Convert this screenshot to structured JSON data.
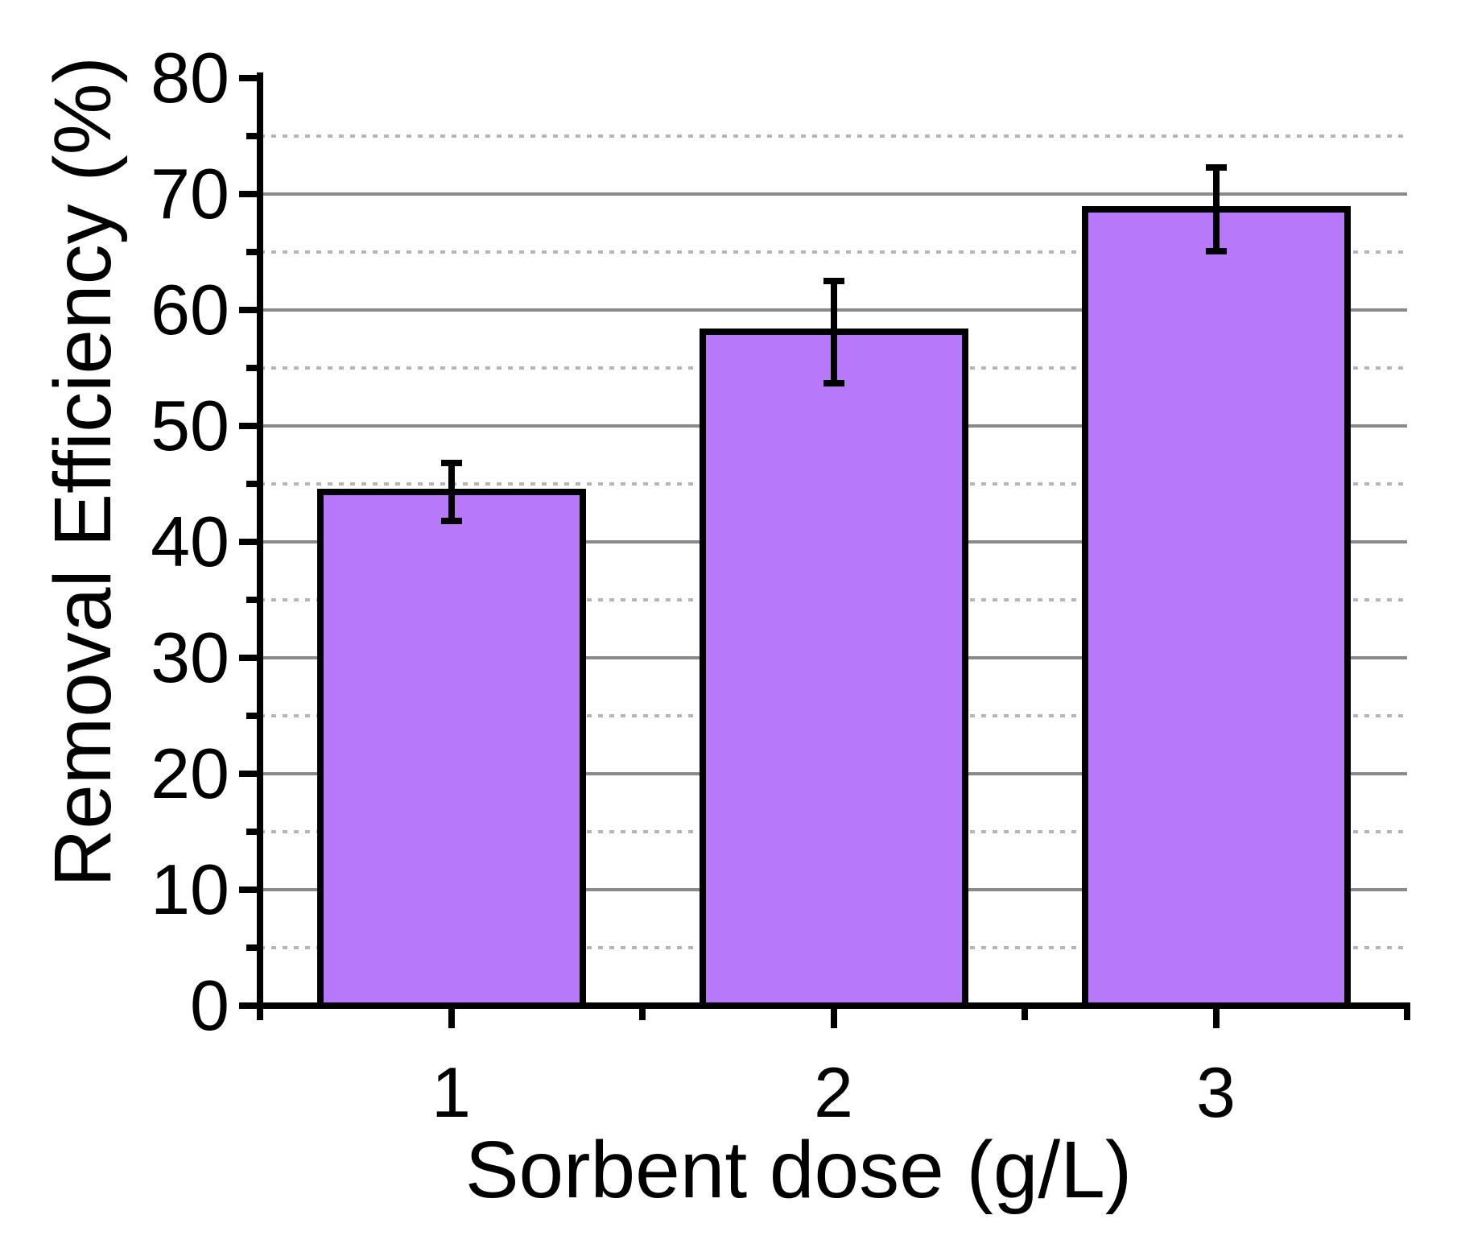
{
  "chart_data": {
    "type": "bar",
    "title": "",
    "xlabel": "Sorbent dose (g/L)",
    "ylabel": "Removal Efficiency (%)",
    "categories": [
      "1",
      "2",
      "3"
    ],
    "values": [
      44.3,
      58.1,
      68.7
    ],
    "error_bars": [
      2.5,
      4.4,
      3.6
    ],
    "ylim": [
      0,
      80
    ],
    "y_major_step": 10,
    "y_minor_step": 5,
    "y_tick_labels": [
      "0",
      "10",
      "20",
      "30",
      "40",
      "50",
      "60",
      "70",
      "80"
    ],
    "grid": {
      "major_style": "solid",
      "minor_style": "dotted",
      "vertical": "off"
    },
    "legend": "none",
    "colors": {
      "bar_fill": "#b778fa",
      "bar_edge": "#000000",
      "error_bar": "#000000",
      "axis": "#000000",
      "grid_major": "#8a8a8a",
      "grid_minor": "#b5b5b5",
      "text": "#000000",
      "background": "#ffffff"
    }
  }
}
